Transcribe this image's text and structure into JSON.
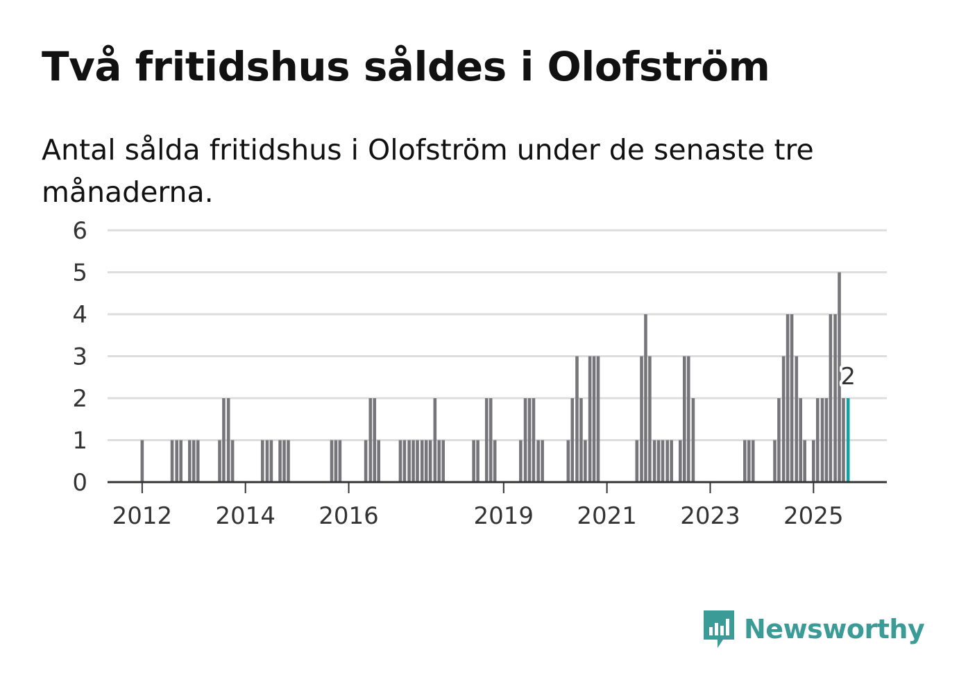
{
  "title": "Två fritidshus såldes i Olofström",
  "subtitle": "Antal sålda fritidshus i Olofström under de senaste tre månaderna.",
  "brand": {
    "name": "Newsworthy",
    "color": "#3a9b97"
  },
  "colors": {
    "bar": "#76767a",
    "highlight": "#16a1a1",
    "grid": "#dddddd",
    "axis": "#333333"
  },
  "chart_data": {
    "type": "bar",
    "title": "Två fritidshus såldes i Olofström",
    "ylim": [
      0,
      6
    ],
    "yticks": [
      0,
      1,
      2,
      3,
      4,
      5,
      6
    ],
    "xlim": [
      2011.33,
      2026.42
    ],
    "xticks": [
      2012,
      2014,
      2016,
      2019,
      2021,
      2023,
      2025
    ],
    "grid": true,
    "highlight_label": "2",
    "points": [
      {
        "t": 2012.0,
        "v": 1
      },
      {
        "t": 2012.58,
        "v": 1
      },
      {
        "t": 2012.67,
        "v": 1
      },
      {
        "t": 2012.75,
        "v": 1
      },
      {
        "t": 2012.92,
        "v": 1
      },
      {
        "t": 2013.0,
        "v": 1
      },
      {
        "t": 2013.08,
        "v": 1
      },
      {
        "t": 2013.5,
        "v": 1
      },
      {
        "t": 2013.58,
        "v": 2
      },
      {
        "t": 2013.67,
        "v": 2
      },
      {
        "t": 2013.75,
        "v": 1
      },
      {
        "t": 2014.33,
        "v": 1
      },
      {
        "t": 2014.42,
        "v": 1
      },
      {
        "t": 2014.5,
        "v": 1
      },
      {
        "t": 2014.67,
        "v": 1
      },
      {
        "t": 2014.75,
        "v": 1
      },
      {
        "t": 2014.83,
        "v": 1
      },
      {
        "t": 2015.67,
        "v": 1
      },
      {
        "t": 2015.75,
        "v": 1
      },
      {
        "t": 2015.83,
        "v": 1
      },
      {
        "t": 2016.33,
        "v": 1
      },
      {
        "t": 2016.42,
        "v": 2
      },
      {
        "t": 2016.5,
        "v": 2
      },
      {
        "t": 2016.58,
        "v": 1
      },
      {
        "t": 2017.0,
        "v": 1
      },
      {
        "t": 2017.08,
        "v": 1
      },
      {
        "t": 2017.17,
        "v": 1
      },
      {
        "t": 2017.25,
        "v": 1
      },
      {
        "t": 2017.33,
        "v": 1
      },
      {
        "t": 2017.42,
        "v": 1
      },
      {
        "t": 2017.5,
        "v": 1
      },
      {
        "t": 2017.58,
        "v": 1
      },
      {
        "t": 2017.67,
        "v": 2
      },
      {
        "t": 2017.75,
        "v": 1
      },
      {
        "t": 2017.83,
        "v": 1
      },
      {
        "t": 2018.42,
        "v": 1
      },
      {
        "t": 2018.5,
        "v": 1
      },
      {
        "t": 2018.67,
        "v": 2
      },
      {
        "t": 2018.75,
        "v": 2
      },
      {
        "t": 2018.83,
        "v": 1
      },
      {
        "t": 2019.33,
        "v": 1
      },
      {
        "t": 2019.42,
        "v": 2
      },
      {
        "t": 2019.5,
        "v": 2
      },
      {
        "t": 2019.58,
        "v": 2
      },
      {
        "t": 2019.67,
        "v": 1
      },
      {
        "t": 2019.75,
        "v": 1
      },
      {
        "t": 2020.25,
        "v": 1
      },
      {
        "t": 2020.33,
        "v": 2
      },
      {
        "t": 2020.42,
        "v": 3
      },
      {
        "t": 2020.5,
        "v": 2
      },
      {
        "t": 2020.58,
        "v": 1
      },
      {
        "t": 2020.67,
        "v": 3
      },
      {
        "t": 2020.75,
        "v": 3
      },
      {
        "t": 2020.83,
        "v": 3
      },
      {
        "t": 2021.58,
        "v": 1
      },
      {
        "t": 2021.67,
        "v": 3
      },
      {
        "t": 2021.75,
        "v": 4
      },
      {
        "t": 2021.83,
        "v": 3
      },
      {
        "t": 2021.92,
        "v": 1
      },
      {
        "t": 2022.0,
        "v": 1
      },
      {
        "t": 2022.08,
        "v": 1
      },
      {
        "t": 2022.17,
        "v": 1
      },
      {
        "t": 2022.25,
        "v": 1
      },
      {
        "t": 2022.42,
        "v": 1
      },
      {
        "t": 2022.5,
        "v": 3
      },
      {
        "t": 2022.58,
        "v": 3
      },
      {
        "t": 2022.67,
        "v": 2
      },
      {
        "t": 2023.67,
        "v": 1
      },
      {
        "t": 2023.75,
        "v": 1
      },
      {
        "t": 2023.83,
        "v": 1
      },
      {
        "t": 2024.25,
        "v": 1
      },
      {
        "t": 2024.33,
        "v": 2
      },
      {
        "t": 2024.42,
        "v": 3
      },
      {
        "t": 2024.5,
        "v": 4
      },
      {
        "t": 2024.58,
        "v": 4
      },
      {
        "t": 2024.67,
        "v": 3
      },
      {
        "t": 2024.75,
        "v": 2
      },
      {
        "t": 2024.83,
        "v": 1
      },
      {
        "t": 2025.0,
        "v": 1
      },
      {
        "t": 2025.08,
        "v": 2
      },
      {
        "t": 2025.17,
        "v": 2
      },
      {
        "t": 2025.25,
        "v": 2
      },
      {
        "t": 2025.33,
        "v": 4
      },
      {
        "t": 2025.42,
        "v": 4
      },
      {
        "t": 2025.5,
        "v": 5
      },
      {
        "t": 2025.58,
        "v": 2
      },
      {
        "t": 2025.67,
        "v": 2,
        "highlight": true
      }
    ]
  }
}
